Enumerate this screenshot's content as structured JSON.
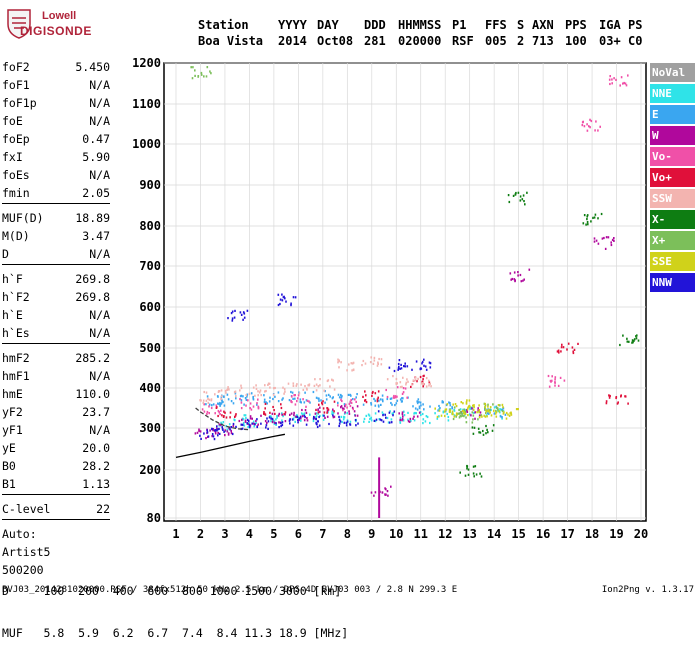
{
  "logo": {
    "line1": "Lowell",
    "line2": "DIGISONDE"
  },
  "header": {
    "columns": [
      "Station",
      "YYYY",
      "DAY",
      "DDD",
      "HHMMSS",
      "P1",
      "FFS",
      "S",
      "AXN",
      "PPS",
      "IGA",
      "PS"
    ],
    "values": [
      "Boa Vista",
      "2014",
      "Oct08",
      "281",
      "020000",
      "RSF",
      "005",
      "2",
      "713",
      "100",
      "03+",
      "C0"
    ]
  },
  "params": {
    "group1": [
      {
        "label": "foF2",
        "value": "5.450"
      },
      {
        "label": "foF1",
        "value": "N/A"
      },
      {
        "label": "foF1p",
        "value": "N/A"
      },
      {
        "label": "foE",
        "value": "N/A"
      },
      {
        "label": "foEp",
        "value": "0.47"
      },
      {
        "label": "fxI",
        "value": "5.90"
      },
      {
        "label": "foEs",
        "value": "N/A"
      },
      {
        "label": "fmin",
        "value": "2.05"
      }
    ],
    "group2": [
      {
        "label": "MUF(D)",
        "value": "18.89"
      },
      {
        "label": "M(D)",
        "value": "3.47"
      },
      {
        "label": "D",
        "value": "N/A"
      }
    ],
    "group3": [
      {
        "label": "h`F",
        "value": "269.8"
      },
      {
        "label": "h`F2",
        "value": "269.8"
      },
      {
        "label": "h`E",
        "value": "N/A"
      },
      {
        "label": "h`Es",
        "value": "N/A"
      }
    ],
    "group4": [
      {
        "label": "hmF2",
        "value": "285.2"
      },
      {
        "label": "hmF1",
        "value": "N/A"
      },
      {
        "label": "hmE",
        "value": "110.0"
      },
      {
        "label": "yF2",
        "value": "23.7"
      },
      {
        "label": "yF1",
        "value": "N/A"
      },
      {
        "label": "yE",
        "value": "20.0"
      },
      {
        "label": "B0",
        "value": "28.2"
      },
      {
        "label": "B1",
        "value": "1.13"
      }
    ],
    "group5": [
      {
        "label": "C-level",
        "value": "22"
      }
    ],
    "auto": {
      "line1": "Auto:",
      "line2": "Artist5",
      "line3": "500200"
    }
  },
  "legend": [
    {
      "label": "NoVal",
      "color": "#a0a0a0"
    },
    {
      "label": "NNE",
      "color": "#2fe3e8"
    },
    {
      "label": "E",
      "color": "#3aa6f0"
    },
    {
      "label": "W",
      "color": "#b0089c"
    },
    {
      "label": "Vo-",
      "color": "#f050a8"
    },
    {
      "label": "Vo+",
      "color": "#e0103a"
    },
    {
      "label": "SSW",
      "color": "#f3b4b0"
    },
    {
      "label": "X-",
      "color": "#0e7d12"
    },
    {
      "label": "X+",
      "color": "#7cbf5a"
    },
    {
      "label": "SSE",
      "color": "#d0d21a"
    },
    {
      "label": "NNW",
      "color": "#2214d8"
    }
  ],
  "chart_data": {
    "type": "scatter",
    "title": "",
    "xlabel": "",
    "ylabel": "",
    "xlim": [
      1,
      20
    ],
    "ylim": [
      80,
      1200
    ],
    "x_ticks": [
      1,
      2,
      3,
      4,
      5,
      6,
      7,
      8,
      9,
      10,
      11,
      12,
      13,
      14,
      15,
      16,
      17,
      18,
      19,
      20
    ],
    "y_ticks": [
      80,
      200,
      300,
      400,
      500,
      600,
      700,
      800,
      900,
      1000,
      1100,
      1200
    ],
    "grid": true,
    "series": [
      {
        "name": "NNE",
        "color": "#2fe3e8",
        "points": [
          [
            3.0,
            310
          ],
          [
            4.0,
            320
          ],
          [
            5.0,
            325
          ],
          [
            6.0,
            328
          ],
          [
            7.0,
            330
          ],
          [
            8.0,
            330
          ],
          [
            9.0,
            330
          ],
          [
            10.0,
            330
          ],
          [
            11.0,
            330
          ],
          [
            12.0,
            335
          ],
          [
            13.0,
            340
          ],
          [
            14.0,
            340
          ]
        ]
      },
      {
        "name": "E",
        "color": "#3aa6f0",
        "points": [
          [
            2.5,
            370
          ],
          [
            3.0,
            375
          ],
          [
            4.0,
            375
          ],
          [
            5.0,
            378
          ],
          [
            6.0,
            380
          ],
          [
            7.0,
            380
          ],
          [
            8.0,
            375
          ],
          [
            9.0,
            370
          ],
          [
            10.0,
            365
          ],
          [
            11.0,
            360
          ],
          [
            12.0,
            355
          ],
          [
            14.0,
            345
          ]
        ]
      },
      {
        "name": "W",
        "color": "#b0089c",
        "points": [
          [
            2.2,
            290
          ],
          [
            3.0,
            300
          ],
          [
            4.0,
            320
          ],
          [
            5.0,
            330
          ],
          [
            6.0,
            335
          ],
          [
            7.0,
            340
          ],
          [
            8.0,
            345
          ],
          [
            9.3,
            150
          ],
          [
            10.5,
            330
          ],
          [
            13.0,
            340
          ],
          [
            15.0,
            680
          ],
          [
            18.5,
            760
          ]
        ]
      },
      {
        "name": "Vo-",
        "color": "#f050a8",
        "points": [
          [
            2.5,
            350
          ],
          [
            4.0,
            360
          ],
          [
            6.0,
            370
          ],
          [
            8.0,
            360
          ],
          [
            10.0,
            390
          ],
          [
            16.5,
            420
          ],
          [
            18.0,
            1050
          ],
          [
            19.0,
            1160
          ]
        ]
      },
      {
        "name": "Vo+",
        "color": "#e0103a",
        "points": [
          [
            3.0,
            340
          ],
          [
            5.0,
            350
          ],
          [
            7.0,
            355
          ],
          [
            9.0,
            380
          ],
          [
            11.0,
            420
          ],
          [
            17.0,
            500
          ],
          [
            19.0,
            370
          ]
        ]
      },
      {
        "name": "SSW",
        "color": "#f3b4b0",
        "points": [
          [
            2.3,
            380
          ],
          [
            3.0,
            390
          ],
          [
            4.0,
            395
          ],
          [
            5.0,
            400
          ],
          [
            6.0,
            400
          ],
          [
            7.0,
            410
          ],
          [
            8.0,
            460
          ],
          [
            9.0,
            470
          ],
          [
            10.0,
            420
          ],
          [
            11.0,
            420
          ]
        ]
      },
      {
        "name": "X-",
        "color": "#0e7d12",
        "points": [
          [
            13.0,
            200
          ],
          [
            13.5,
            300
          ],
          [
            15.0,
            870
          ],
          [
            18.0,
            820
          ],
          [
            19.5,
            520
          ]
        ]
      },
      {
        "name": "X+",
        "color": "#7cbf5a",
        "points": [
          [
            12.5,
            340
          ],
          [
            13.0,
            330
          ],
          [
            14.0,
            350
          ],
          [
            2.0,
            1180
          ]
        ]
      },
      {
        "name": "SSE",
        "color": "#d0d21a",
        "points": [
          [
            12.0,
            340
          ],
          [
            12.5,
            350
          ],
          [
            13.0,
            360
          ],
          [
            13.5,
            345
          ],
          [
            14.0,
            350
          ],
          [
            14.5,
            340
          ]
        ]
      },
      {
        "name": "NNW",
        "color": "#2214d8",
        "points": [
          [
            2.3,
            290
          ],
          [
            3.0,
            300
          ],
          [
            4.0,
            310
          ],
          [
            5.0,
            315
          ],
          [
            6.0,
            320
          ],
          [
            7.0,
            320
          ],
          [
            8.0,
            320
          ],
          [
            9.5,
            330
          ],
          [
            10.0,
            460
          ],
          [
            11.0,
            460
          ],
          [
            3.5,
            580
          ],
          [
            5.5,
            620
          ]
        ]
      }
    ],
    "profile_curve": {
      "color": "#000000",
      "points": [
        [
          1.0,
          230
        ],
        [
          2.0,
          242
        ],
        [
          3.0,
          255
        ],
        [
          4.0,
          268
        ],
        [
          5.0,
          280
        ],
        [
          5.45,
          285
        ]
      ]
    },
    "trace_curve": {
      "color": "#404040",
      "points": [
        [
          1.8,
          350
        ],
        [
          2.0,
          340
        ],
        [
          2.5,
          320
        ],
        [
          3.0,
          305
        ],
        [
          3.5,
          298
        ],
        [
          4.0,
          296
        ]
      ]
    }
  },
  "d_table": {
    "d_label": "D",
    "d_values": [
      "100",
      "200",
      "400",
      "600",
      "800",
      "1000",
      "1500",
      "3000"
    ],
    "d_unit": "[km]",
    "muf_label": "MUF",
    "muf_values": [
      "5.8",
      "5.9",
      "6.2",
      "6.7",
      "7.4",
      "8.4",
      "11.3",
      "18.9"
    ],
    "muf_unit": "[MHz]"
  },
  "footer": {
    "left": "BVJ03_2014281020000.RSF / 384fx512h 50 kHz 2.5 km / DPS-4D BVJ03 003 / 2.8 N 299.3 E",
    "right": "Ion2Png v. 1.3.17"
  }
}
